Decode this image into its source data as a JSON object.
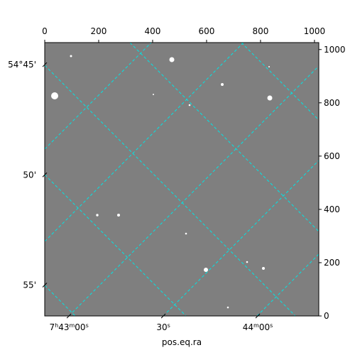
{
  "chart_data": {
    "type": "image",
    "xlabel": "pos.eq.ra",
    "xlim": [
      0,
      1016
    ],
    "xticks": [
      0,
      200,
      400,
      600,
      800,
      1000
    ],
    "ylim": [
      0,
      1026
    ],
    "yticks": [
      0,
      200,
      400,
      600,
      800,
      1000
    ],
    "ra_lim": [
      -7.7,
      79.4
    ],
    "ra_ticks": [
      {
        "value": 0,
        "label": "7h43m00s"
      },
      {
        "value": 30,
        "label": "30s"
      },
      {
        "value": 60,
        "label": "44m00s"
      }
    ],
    "dec_lim": [
      44.0,
      56.4
    ],
    "dec_ticks": [
      {
        "value": 45,
        "label": "54°45'"
      },
      {
        "value": 50,
        "label": "50'"
      },
      {
        "value": 55,
        "label": "55'"
      }
    ]
  }
}
